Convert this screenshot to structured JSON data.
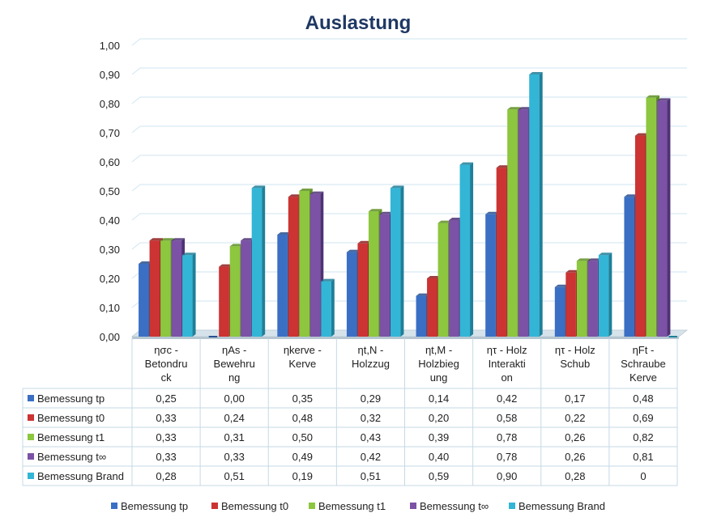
{
  "chart_data": {
    "type": "bar",
    "title": "Auslastung",
    "ylim": [
      0,
      1
    ],
    "y_ticks": [
      "0,00",
      "0,10",
      "0,20",
      "0,30",
      "0,40",
      "0,50",
      "0,60",
      "0,70",
      "0,80",
      "0,90",
      "1,00"
    ],
    "grid": true,
    "legend_position": "bottom",
    "categories": [
      [
        "ησc -",
        "Betondru",
        "ck"
      ],
      [
        "ηAs -",
        "Bewehru",
        "ng"
      ],
      [
        "ηkerve -",
        "Kerve"
      ],
      [
        "ηt,N -",
        "Holzzug"
      ],
      [
        "ηt,M -",
        "Holzbieg",
        "ung"
      ],
      [
        "ητ - Holz",
        "Interakti",
        "on"
      ],
      [
        "ητ - Holz",
        "Schub"
      ],
      [
        "ηFt -",
        "Schraube",
        "Kerve"
      ]
    ],
    "series": [
      {
        "name": "Bemessung tp",
        "color": "#3a6fc4",
        "side": "#27508f",
        "values": [
          0.25,
          0.0,
          0.35,
          0.29,
          0.14,
          0.42,
          0.17,
          0.48
        ],
        "labels": [
          "0,25",
          "0,00",
          "0,35",
          "0,29",
          "0,14",
          "0,42",
          "0,17",
          "0,48"
        ]
      },
      {
        "name": "Bemessung t0",
        "color": "#cc3333",
        "side": "#8f1f1f",
        "values": [
          0.33,
          0.24,
          0.48,
          0.32,
          0.2,
          0.58,
          0.22,
          0.69
        ],
        "labels": [
          "0,33",
          "0,24",
          "0,48",
          "0,32",
          "0,20",
          "0,58",
          "0,22",
          "0,69"
        ]
      },
      {
        "name": "Bemessung t1",
        "color": "#8dc63f",
        "side": "#5e8f22",
        "values": [
          0.33,
          0.31,
          0.5,
          0.43,
          0.39,
          0.78,
          0.26,
          0.82
        ],
        "labels": [
          "0,33",
          "0,31",
          "0,50",
          "0,43",
          "0,39",
          "0,78",
          "0,26",
          "0,82"
        ]
      },
      {
        "name": "Bemessung t∞",
        "color": "#7b52a6",
        "side": "#4f3275",
        "values": [
          0.33,
          0.33,
          0.49,
          0.42,
          0.4,
          0.78,
          0.26,
          0.81
        ],
        "labels": [
          "0,33",
          "0,33",
          "0,49",
          "0,42",
          "0,40",
          "0,78",
          "0,26",
          "0,81"
        ]
      },
      {
        "name": "Bemessung Brand",
        "color": "#33b5d6",
        "side": "#1f7f99",
        "values": [
          0.28,
          0.51,
          0.19,
          0.51,
          0.59,
          0.9,
          0.28,
          0
        ],
        "labels": [
          "0,28",
          "0,51",
          "0,19",
          "0,51",
          "0,59",
          "0,90",
          "0,28",
          "0"
        ]
      }
    ]
  }
}
